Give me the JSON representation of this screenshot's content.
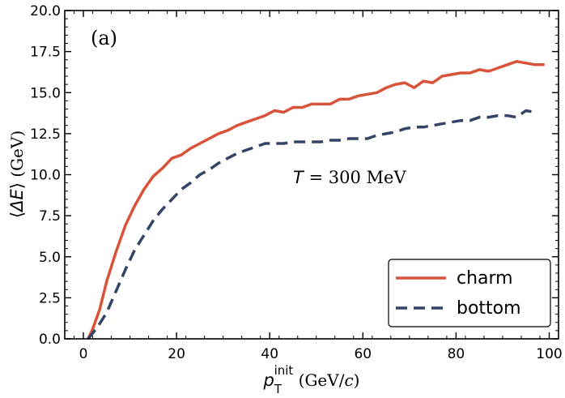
{
  "chart_data": {
    "type": "line",
    "panel_label": "(a)",
    "annotation": {
      "symbol": "T",
      "text": " = 300 MeV"
    },
    "xlabel": {
      "symbol": "p",
      "subscript": "T",
      "superscript": "init",
      "unit_open": " (GeV/",
      "unit_symbol": "c",
      "unit_close": ")"
    },
    "ylabel": {
      "open": "⟨",
      "symbol": "ΔE",
      "close": "⟩",
      "unit": " (GeV)"
    },
    "xlim": [
      -4,
      102
    ],
    "ylim": [
      0,
      20
    ],
    "xticks": [
      0,
      20,
      40,
      60,
      80,
      100
    ],
    "xtick_labels": [
      "0",
      "20",
      "40",
      "60",
      "80",
      "100"
    ],
    "yticks": [
      0,
      2.5,
      5,
      7.5,
      10,
      12.5,
      15,
      17.5,
      20
    ],
    "ytick_labels": [
      "0.0",
      "2.5",
      "5.0",
      "7.5",
      "10.0",
      "12.5",
      "15.0",
      "17.5",
      "20.0"
    ],
    "legend_location": "lower right",
    "series": [
      {
        "name": "charm",
        "color": "#d9533b",
        "style": "solid",
        "x": [
          1,
          2,
          3.5,
          5,
          7,
          9,
          11,
          13,
          15,
          17,
          19,
          21,
          23,
          25,
          27,
          29,
          31,
          33,
          35,
          37,
          39,
          41,
          43,
          45,
          47,
          49,
          51,
          53,
          55,
          57,
          59,
          61,
          63,
          65,
          67,
          69,
          71,
          73,
          75,
          77,
          79,
          81,
          83,
          85,
          87,
          89,
          91,
          93,
          95,
          97,
          99
        ],
        "y": [
          0.0,
          0.6,
          1.8,
          3.5,
          5.3,
          6.9,
          8.1,
          9.1,
          9.9,
          10.4,
          11.0,
          11.2,
          11.6,
          11.9,
          12.2,
          12.5,
          12.7,
          13.0,
          13.2,
          13.4,
          13.6,
          13.9,
          13.8,
          14.1,
          14.1,
          14.3,
          14.3,
          14.3,
          14.6,
          14.6,
          14.8,
          14.9,
          15.0,
          15.3,
          15.5,
          15.6,
          15.3,
          15.7,
          15.6,
          16.0,
          16.1,
          16.2,
          16.2,
          16.4,
          16.3,
          16.5,
          16.7,
          16.9,
          16.8,
          16.7,
          16.7
        ]
      },
      {
        "name": "bottom",
        "color": "#344466",
        "style": "dashed",
        "x": [
          1,
          3,
          5,
          7,
          9,
          11,
          13,
          15,
          17,
          19,
          21,
          23,
          25,
          27,
          29,
          31,
          33,
          35,
          37,
          39,
          41,
          43,
          45,
          47,
          49,
          51,
          53,
          55,
          57,
          59,
          61,
          63,
          65,
          67,
          69,
          71,
          73,
          75,
          77,
          79,
          81,
          83,
          85,
          87,
          89,
          91,
          93,
          95,
          97
        ],
        "y": [
          0.0,
          0.7,
          1.6,
          2.9,
          4.2,
          5.4,
          6.3,
          7.2,
          7.9,
          8.5,
          9.1,
          9.5,
          10.0,
          10.3,
          10.7,
          11.0,
          11.3,
          11.5,
          11.7,
          11.9,
          11.9,
          11.9,
          12.0,
          12.0,
          12.0,
          12.0,
          12.1,
          12.1,
          12.2,
          12.2,
          12.2,
          12.4,
          12.5,
          12.6,
          12.8,
          12.9,
          12.9,
          13.0,
          13.1,
          13.2,
          13.3,
          13.3,
          13.5,
          13.5,
          13.6,
          13.6,
          13.5,
          13.9,
          13.8
        ]
      }
    ]
  }
}
